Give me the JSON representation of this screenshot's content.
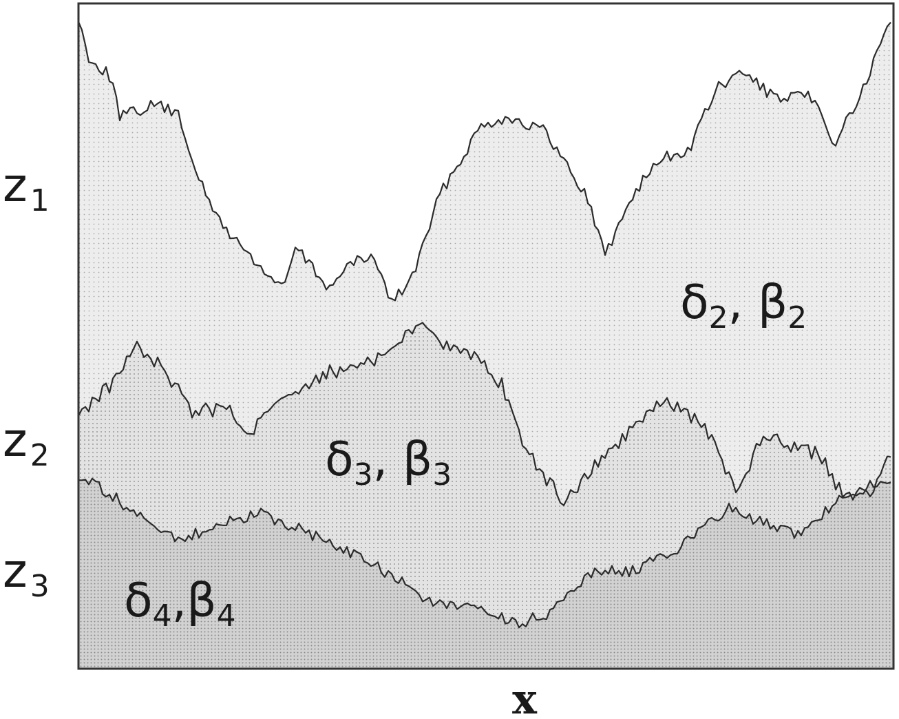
{
  "diagram": {
    "axis_label": "x",
    "interfaces": [
      {
        "name": "z",
        "subscript": "1"
      },
      {
        "name": "z",
        "subscript": "2"
      },
      {
        "name": "z",
        "subscript": "3"
      }
    ],
    "regions": [
      {
        "a": "δ",
        "a_sub": "2",
        "sep": ", ",
        "b": "β",
        "b_sub": "2"
      },
      {
        "a": "δ",
        "a_sub": "3",
        "sep": ", ",
        "b": "β",
        "b_sub": "3"
      },
      {
        "a": "δ",
        "a_sub": "4",
        "sep": ",",
        "b": "β",
        "b_sub": "4"
      }
    ],
    "colors": {
      "frame": "#333333",
      "curve": "#2b2b2b",
      "fill_layer2": "#ececec",
      "fill_layer3": "#e2e2e2",
      "fill_layer4": "#cdcdcd",
      "dot": "#9a9a9a"
    }
  }
}
